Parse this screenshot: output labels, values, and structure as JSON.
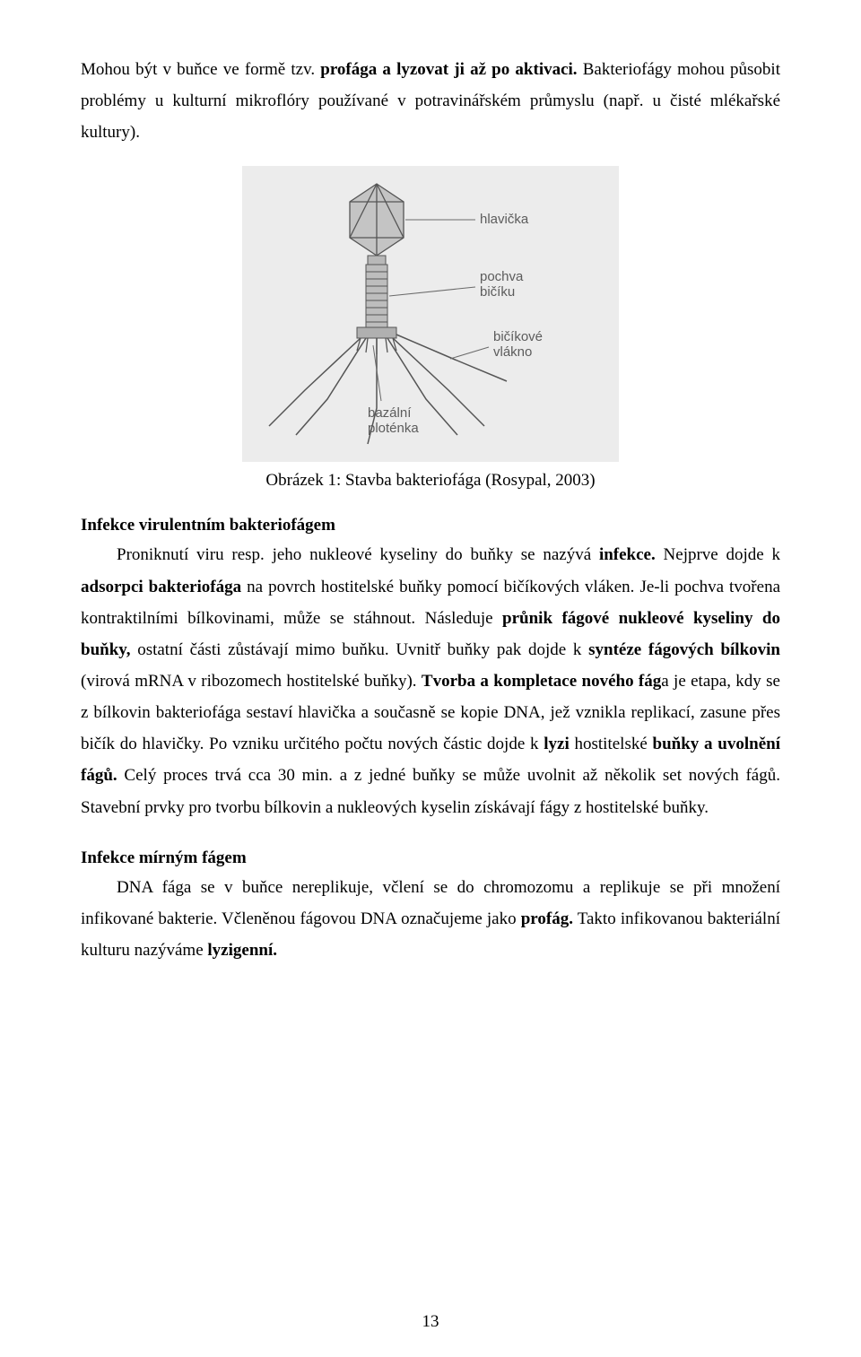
{
  "intro_para_html": "Mohou být v buňce ve formě tzv. <b>profága a lyzovat ji až po aktivaci.</b> Bakteriofágy mohou působit problémy u kulturní mikroflóry používané v potravinářském průmyslu (např. u čisté mlékařské kultury).",
  "figure": {
    "label_head": "hlavička",
    "label_sheath": "pochva bičíku",
    "label_fiber": "bičíkové vlákno",
    "label_plate": "bazální ploténka",
    "caption": "Obrázek 1: Stavba bakteriofága (Rosypal, 2003)",
    "colors": {
      "bg": "#ececec",
      "stroke": "#555555",
      "fill": "#bfbfbf",
      "text": "#5c5c5c",
      "label_font_size": 15
    }
  },
  "section1_title": "Infekce virulentním bakteriofágem",
  "section1_body_html": "Proniknutí viru resp. jeho nukleové kyseliny do buňky se nazývá <b>infekce.</b> Nejprve dojde k <b>adsorpci bakteriofága</b> na povrch hostitelské buňky pomocí bičíkových vláken. Je-li pochva tvořena kontraktilními bílkovinami, může se stáhnout. Následuje <b>průnik fágové nukleové kyseliny do buňky,</b> ostatní části zůstávají mimo buňku. Uvnitř buňky pak dojde k <b>syntéze fágových bílkovin</b> (virová mRNA v ribozomech hostitelské buňky). <b>Tvorba a kompletace nového fág</b>a je etapa, kdy se z bílkovin bakteriofága sestaví hlavička a současně se kopie DNA, jež vznikla replikací, zasune přes bičík do hlavičky. Po vzniku určitého počtu nových částic dojde k <b>lyzi</b> hostitelské <b>buňky a uvolnění fágů.</b> Celý proces trvá cca 30 min. a z jedné buňky se může uvolnit až několik set nových fágů. Stavební prvky pro tvorbu bílkovin a nukleových kyselin získávají fágy z hostitelské buňky.",
  "section2_title": "Infekce mírným fágem",
  "section2_body_html": "DNA fága se v buňce nereplikuje, včlení se do chromozomu a replikuje se při množení infikované bakterie. Včleněnou fágovou DNA označujeme jako <b>profág.</b> Takto infikovanou bakteriální kulturu nazýváme <b>lyzigenní.</b>",
  "page_number": "13"
}
